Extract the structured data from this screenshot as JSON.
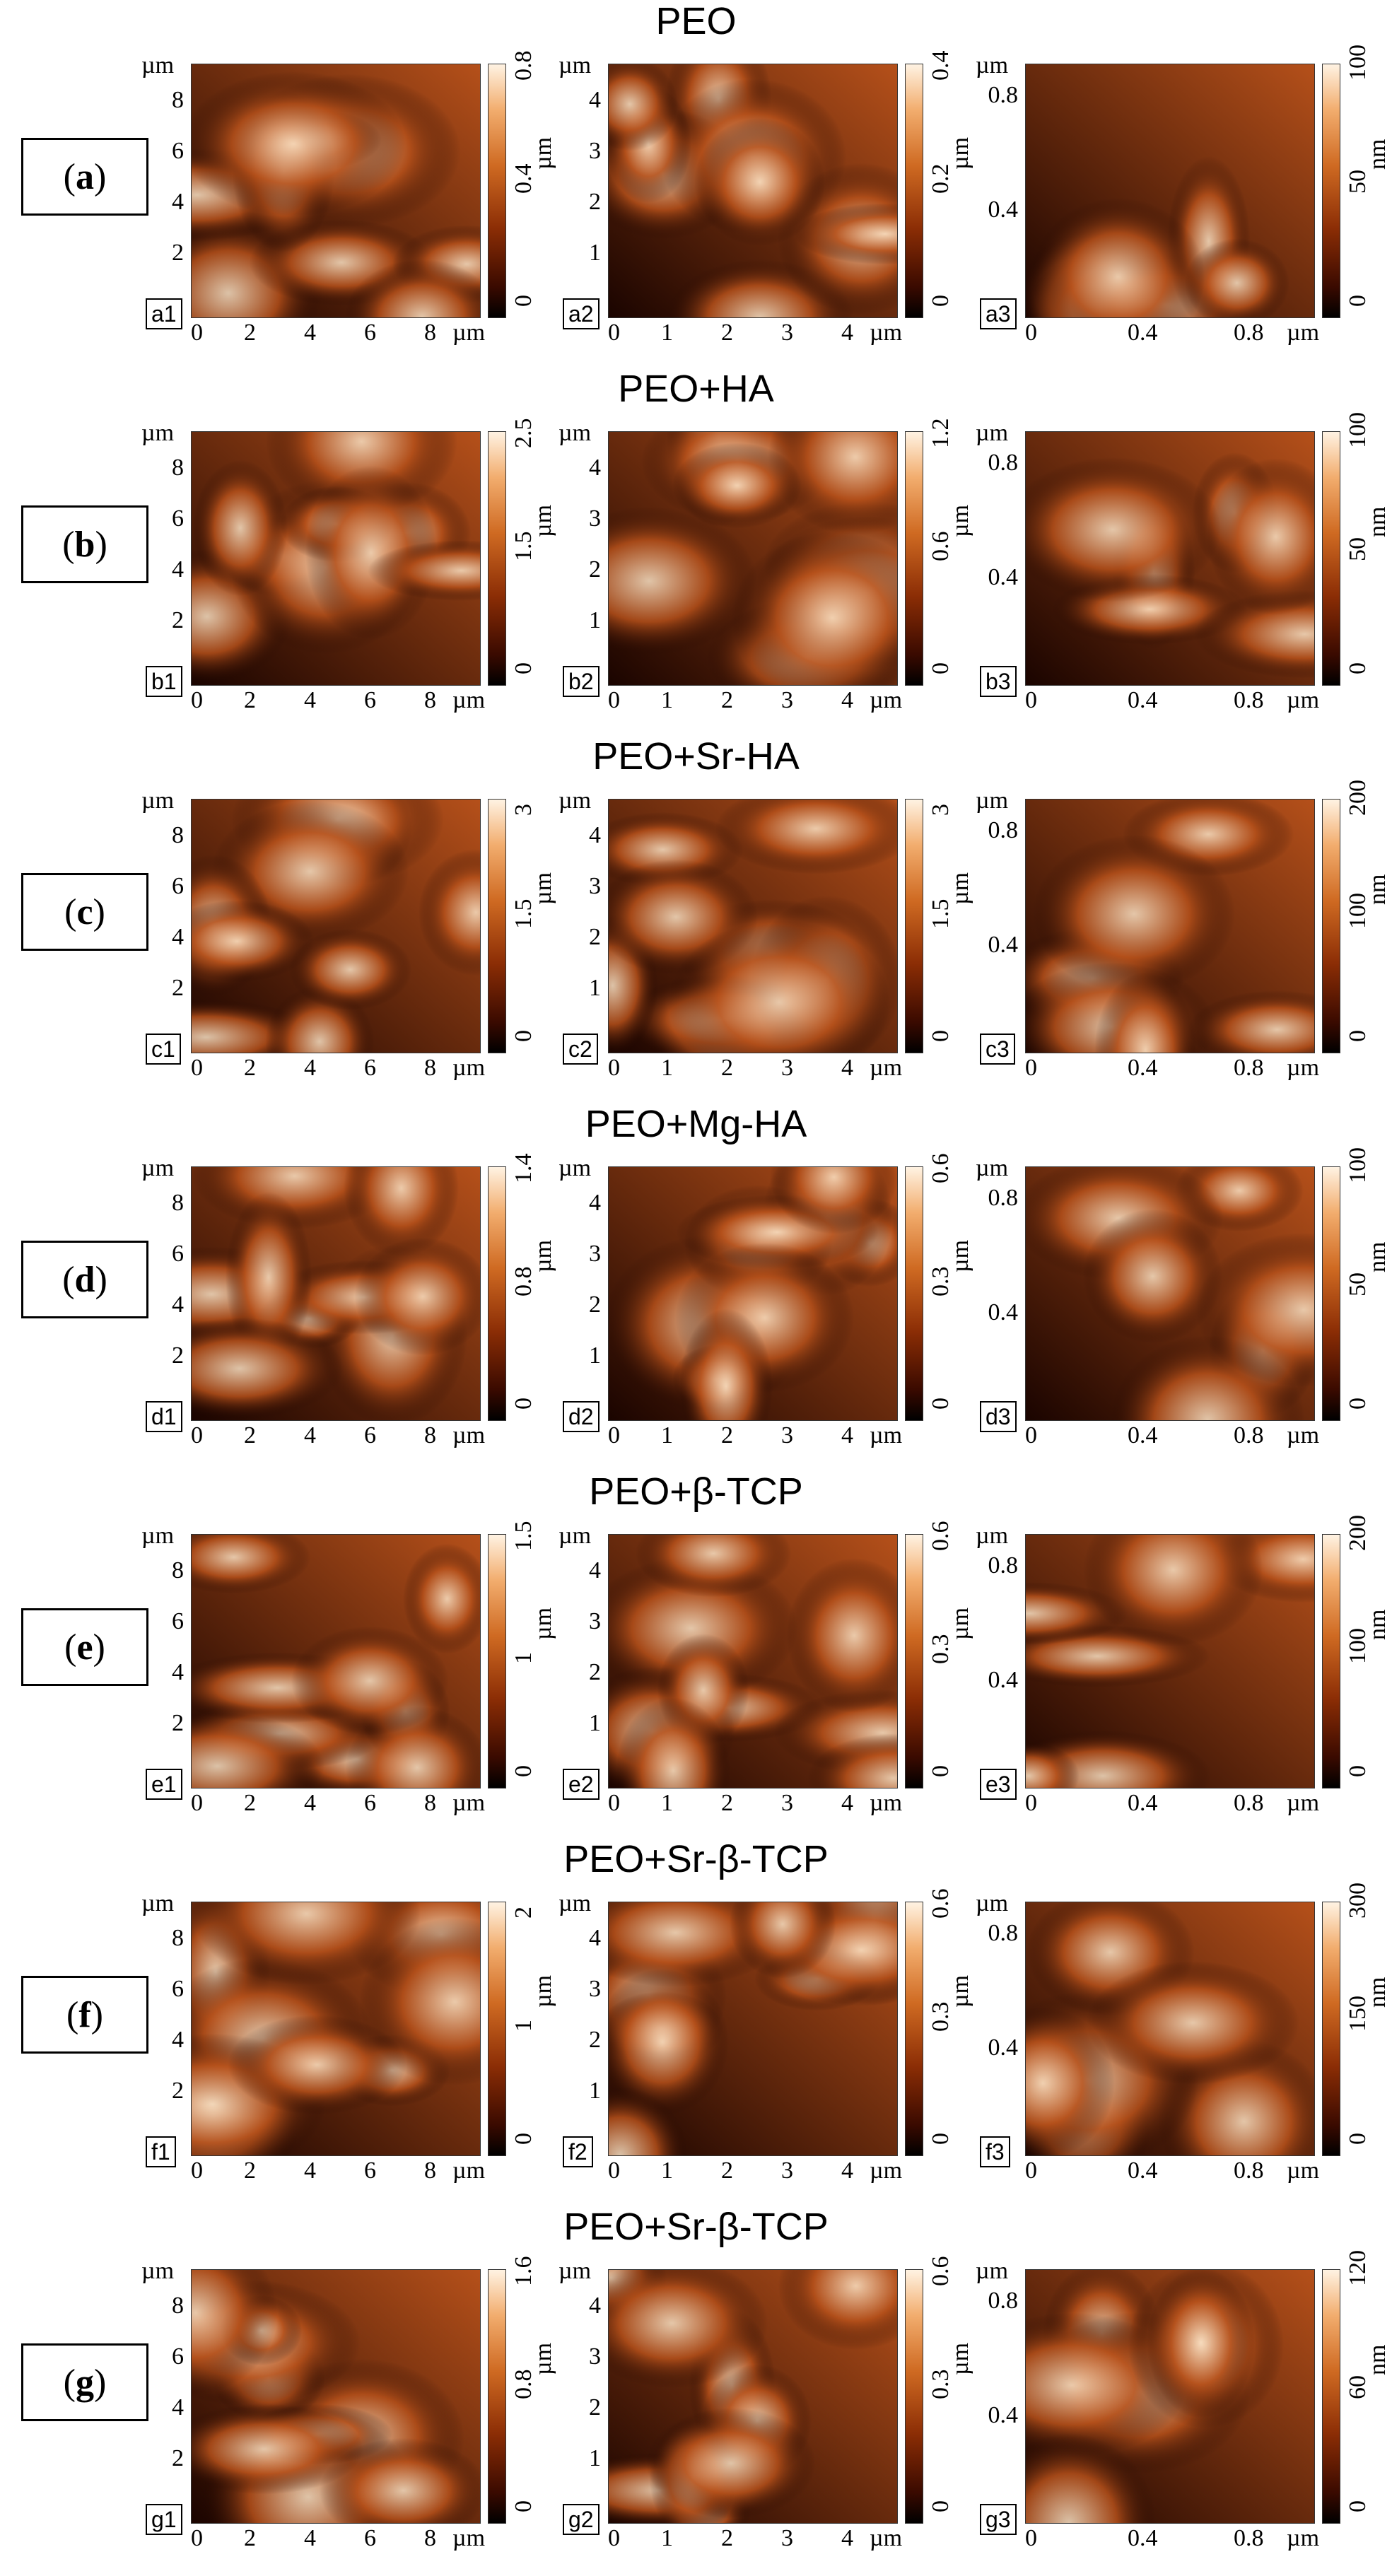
{
  "rows": [
    {
      "title": "PEO",
      "label": "a",
      "panels": [
        {
          "sub": "a1",
          "yticks": [
            "8",
            "6",
            "4",
            "2"
          ],
          "xticks": [
            "0",
            "2",
            "4",
            "6",
            "8"
          ],
          "unit": "µm",
          "cbar": [
            "0.8",
            "0.4",
            "0"
          ],
          "cbar_unit": "µm"
        },
        {
          "sub": "a2",
          "yticks": [
            "4",
            "3",
            "2",
            "1"
          ],
          "xticks": [
            "0",
            "1",
            "2",
            "3",
            "4"
          ],
          "unit": "µm",
          "cbar": [
            "0.4",
            "0.2",
            "0"
          ],
          "cbar_unit": "µm"
        },
        {
          "sub": "a3",
          "yticks": [
            "0.8",
            "0.4"
          ],
          "xticks": [
            "0",
            "0.4",
            "0.8"
          ],
          "unit": "µm",
          "cbar": [
            "100",
            "50",
            "0"
          ],
          "cbar_unit": "nm"
        }
      ]
    },
    {
      "title": "PEO+HA",
      "label": "b",
      "panels": [
        {
          "sub": "b1",
          "yticks": [
            "8",
            "6",
            "4",
            "2"
          ],
          "xticks": [
            "0",
            "2",
            "4",
            "6",
            "8"
          ],
          "unit": "µm",
          "cbar": [
            "2.5",
            "1.5",
            "0"
          ],
          "cbar_unit": "µm"
        },
        {
          "sub": "b2",
          "yticks": [
            "4",
            "3",
            "2",
            "1"
          ],
          "xticks": [
            "0",
            "1",
            "2",
            "3",
            "4"
          ],
          "unit": "µm",
          "cbar": [
            "1.2",
            "0.6",
            "0"
          ],
          "cbar_unit": "µm"
        },
        {
          "sub": "b3",
          "yticks": [
            "0.8",
            "0.4"
          ],
          "xticks": [
            "0",
            "0.4",
            "0.8"
          ],
          "unit": "µm",
          "cbar": [
            "100",
            "50",
            "0"
          ],
          "cbar_unit": "nm"
        }
      ]
    },
    {
      "title": "PEO+Sr-HA",
      "label": "c",
      "panels": [
        {
          "sub": "c1",
          "yticks": [
            "8",
            "6",
            "4",
            "2"
          ],
          "xticks": [
            "0",
            "2",
            "4",
            "6",
            "8"
          ],
          "unit": "µm",
          "cbar": [
            "3",
            "1.5",
            "0"
          ],
          "cbar_unit": "µm"
        },
        {
          "sub": "c2",
          "yticks": [
            "4",
            "3",
            "2",
            "1"
          ],
          "xticks": [
            "0",
            "1",
            "2",
            "3",
            "4"
          ],
          "unit": "µm",
          "cbar": [
            "3",
            "1.5",
            "0"
          ],
          "cbar_unit": "µm"
        },
        {
          "sub": "c3",
          "yticks": [
            "0.8",
            "0.4"
          ],
          "xticks": [
            "0",
            "0.4",
            "0.8"
          ],
          "unit": "µm",
          "cbar": [
            "200",
            "100",
            "0"
          ],
          "cbar_unit": "nm"
        }
      ]
    },
    {
      "title": "PEO+Mg-HA",
      "label": "d",
      "panels": [
        {
          "sub": "d1",
          "yticks": [
            "8",
            "6",
            "4",
            "2"
          ],
          "xticks": [
            "0",
            "2",
            "4",
            "6",
            "8"
          ],
          "unit": "µm",
          "cbar": [
            "1.4",
            "0.8",
            "0"
          ],
          "cbar_unit": "µm"
        },
        {
          "sub": "d2",
          "yticks": [
            "4",
            "3",
            "2",
            "1"
          ],
          "xticks": [
            "0",
            "1",
            "2",
            "3",
            "4"
          ],
          "unit": "µm",
          "cbar": [
            "0.6",
            "0.3",
            "0"
          ],
          "cbar_unit": "µm"
        },
        {
          "sub": "d3",
          "yticks": [
            "0.8",
            "0.4"
          ],
          "xticks": [
            "0",
            "0.4",
            "0.8"
          ],
          "unit": "µm",
          "cbar": [
            "100",
            "50",
            "0"
          ],
          "cbar_unit": "nm"
        }
      ]
    },
    {
      "title": "PEO+β-TCP",
      "label": "e",
      "panels": [
        {
          "sub": "e1",
          "yticks": [
            "8",
            "6",
            "4",
            "2"
          ],
          "xticks": [
            "0",
            "2",
            "4",
            "6",
            "8"
          ],
          "unit": "µm",
          "cbar": [
            "1.5",
            "1",
            "0"
          ],
          "cbar_unit": "µm"
        },
        {
          "sub": "e2",
          "yticks": [
            "4",
            "3",
            "2",
            "1"
          ],
          "xticks": [
            "0",
            "1",
            "2",
            "3",
            "4"
          ],
          "unit": "µm",
          "cbar": [
            "0.6",
            "0.3",
            "0"
          ],
          "cbar_unit": "µm"
        },
        {
          "sub": "e3",
          "yticks": [
            "0.8",
            "0.4"
          ],
          "xticks": [
            "0",
            "0.4",
            "0.8"
          ],
          "unit": "µm",
          "cbar": [
            "200",
            "100",
            "0"
          ],
          "cbar_unit": "nm"
        }
      ]
    },
    {
      "title": "PEO+Sr-β-TCP",
      "label": "f",
      "panels": [
        {
          "sub": "f1",
          "yticks": [
            "8",
            "6",
            "4",
            "2"
          ],
          "xticks": [
            "0",
            "2",
            "4",
            "6",
            "8"
          ],
          "unit": "µm",
          "cbar": [
            "2",
            "1",
            "0"
          ],
          "cbar_unit": "µm"
        },
        {
          "sub": "f2",
          "yticks": [
            "4",
            "3",
            "2",
            "1"
          ],
          "xticks": [
            "0",
            "1",
            "2",
            "3",
            "4"
          ],
          "unit": "µm",
          "cbar": [
            "0.6",
            "0.3",
            "0"
          ],
          "cbar_unit": "µm"
        },
        {
          "sub": "f3",
          "yticks": [
            "0.8",
            "0.4"
          ],
          "xticks": [
            "0",
            "0.4",
            "0.8"
          ],
          "unit": "µm",
          "cbar": [
            "300",
            "150",
            "0"
          ],
          "cbar_unit": "nm"
        }
      ]
    },
    {
      "title": "PEO+Sr-β-TCP",
      "label": "g",
      "panels": [
        {
          "sub": "g1",
          "yticks": [
            "8",
            "6",
            "4",
            "2"
          ],
          "xticks": [
            "0",
            "2",
            "4",
            "6",
            "8"
          ],
          "unit": "µm",
          "cbar": [
            "1.6",
            "0.8",
            "0"
          ],
          "cbar_unit": "µm"
        },
        {
          "sub": "g2",
          "yticks": [
            "4",
            "3",
            "2",
            "1"
          ],
          "xticks": [
            "0",
            "1",
            "2",
            "3",
            "4"
          ],
          "unit": "µm",
          "cbar": [
            "0.6",
            "0.3",
            "0"
          ],
          "cbar_unit": "µm"
        },
        {
          "sub": "g3",
          "yticks": [
            "0.8",
            "0.4"
          ],
          "xticks": [
            "0",
            "0.4",
            "0.8"
          ],
          "unit": "µm",
          "cbar": [
            "120",
            "60",
            "0"
          ],
          "cbar_unit": "nm"
        }
      ]
    }
  ],
  "colors": {
    "afm_dark": "#1a0400",
    "afm_mid": "#b5501a",
    "afm_light": "#fbe2c4"
  }
}
